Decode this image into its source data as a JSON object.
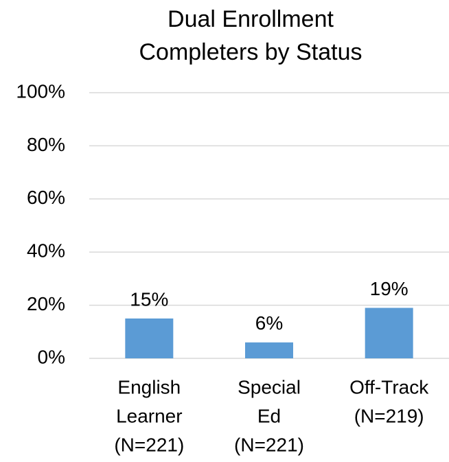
{
  "chart_data": {
    "type": "bar",
    "title": [
      "Dual Enrollment",
      "Completers by Status"
    ],
    "categories": [
      [
        "English",
        "Learner",
        "(N=221)"
      ],
      [
        "Special",
        "Ed",
        "(N=221)"
      ],
      [
        "Off-Track",
        "(N=219)"
      ]
    ],
    "values": [
      15,
      6,
      19
    ],
    "value_labels": [
      "15%",
      "6%",
      "19%"
    ],
    "color": "#5b9bd5",
    "ylim": [
      0,
      100
    ],
    "yticks": [
      {
        "value": 0,
        "label": "0%"
      },
      {
        "value": 20,
        "label": "20%"
      },
      {
        "value": 40,
        "label": "40%"
      },
      {
        "value": 60,
        "label": "60%"
      },
      {
        "value": 80,
        "label": "80%"
      },
      {
        "value": 100,
        "label": "100%"
      }
    ],
    "grid": true
  }
}
